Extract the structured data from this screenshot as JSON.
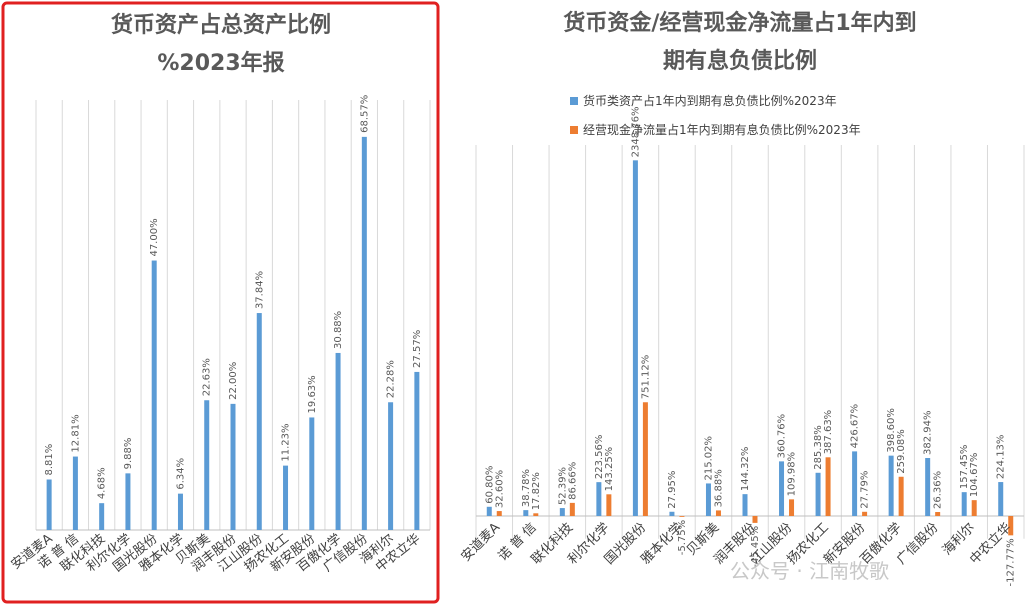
{
  "colors": {
    "blue": "#5B9BD5",
    "orange": "#ED7D31",
    "frame": "#E02020",
    "grid": "#D9D9D9",
    "axis": "#BFBFBF"
  },
  "watermark": "公众号 · 江南牧歌",
  "chart_data": [
    {
      "type": "bar",
      "title": "货币资产占总资产比例",
      "subtitle": "%2023年报",
      "categories": [
        "安道麦A",
        "诺 普 信",
        "联化科技",
        "利尔化学",
        "国光股份",
        "雅本化学",
        "贝斯美",
        "润丰股份",
        "江山股份",
        "扬农化工",
        "新安股份",
        "百傲化学",
        "广信股份",
        "海利尔",
        "中农立华"
      ],
      "series": [
        {
          "values": [
            8.81,
            12.81,
            4.68,
            9.88,
            47.0,
            6.34,
            22.63,
            22.0,
            37.84,
            11.23,
            19.63,
            30.88,
            68.57,
            22.28,
            27.57
          ]
        }
      ],
      "value_labels": [
        "8.81%",
        "12.81%",
        "4.68%",
        "9.88%",
        "47.00%",
        "6.34%",
        "22.63%",
        "22.00%",
        "37.84%",
        "11.23%",
        "19.63%",
        "30.88%",
        "68.57%",
        "22.28%",
        "27.57%"
      ],
      "ylim": [
        0,
        75
      ],
      "grid": "vertical",
      "legend": "none"
    },
    {
      "type": "bar",
      "title": "货币资金/经营现金净流量占1年内到",
      "subtitle": "期有息负债比例",
      "legend_position": "top",
      "categories": [
        "安道麦A",
        "诺 普 信",
        "联化科技",
        "利尔化学",
        "国光股份",
        "雅本化学",
        "贝斯美",
        "润丰股份",
        "江山股份",
        "扬农化工",
        "新安股份",
        "百傲化学",
        "广信股份",
        "海利尔",
        "中农立华"
      ],
      "series": [
        {
          "name": "货币类资产占1年内到期有息负债比例%2023年",
          "values": [
            60.8,
            38.78,
            52.39,
            223.56,
            2348.76,
            27.95,
            215.02,
            144.32,
            360.76,
            285.38,
            426.67,
            398.6,
            382.94,
            157.45,
            224.13
          ],
          "labels": [
            "60.80%",
            "38.78%",
            "52.39%",
            "223.56%",
            "2348.76%",
            "27.95%",
            "215.02%",
            "144.32%",
            "360.76%",
            "285.38%",
            "426.67%",
            "398.60%",
            "382.94%",
            "157.45%",
            "224.13%"
          ]
        },
        {
          "name": "经营现金净流量占1年内到期有息负债比例%2023年",
          "values": [
            32.6,
            17.82,
            86.66,
            143.25,
            751.12,
            -5.75,
            36.88,
            -45.45,
            109.98,
            387.63,
            27.79,
            259.08,
            26.36,
            104.67,
            -127.77
          ],
          "labels": [
            "32.60%",
            "17.82%",
            "86.66%",
            "143.25%",
            "751.12%",
            "-5.75%",
            "36.88%",
            "-45.45%",
            "109.98%",
            "387.63%",
            "27.79%",
            "259.08%",
            "26.36%",
            "104.67%",
            "-127.77%"
          ]
        }
      ],
      "ylim": [
        -150,
        2450
      ],
      "grid": "vertical"
    }
  ]
}
